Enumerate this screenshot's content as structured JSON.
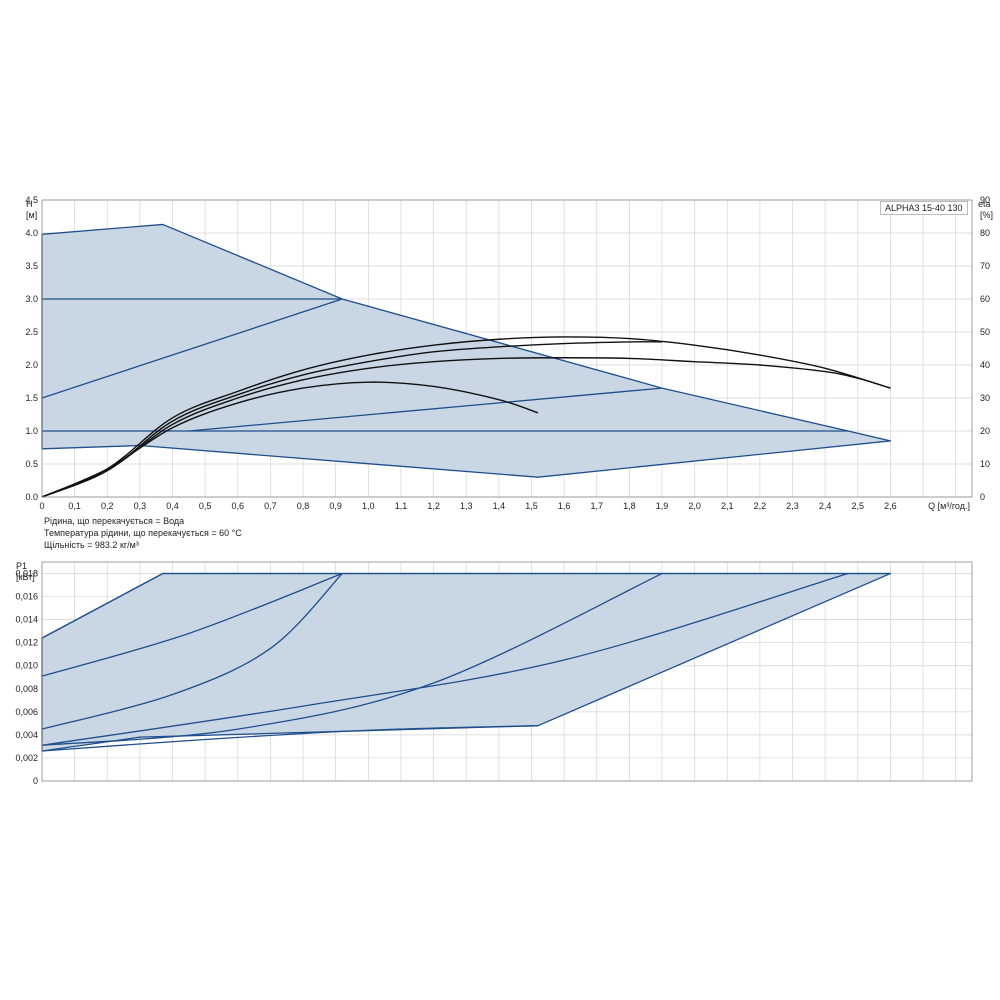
{
  "model_label": "ALPHA3 15-40 130",
  "notes": [
    "Рідина, що перекачується = Вода",
    "Температура рідини, що перекачується = 60 °C",
    "Щільність = 983.2 кг/м³"
  ],
  "colors": {
    "region_fill": "#c9d7e5",
    "boundary": "#1f4e8c",
    "duty_curve": "#111111",
    "grid": "#d4d4d4"
  },
  "chart_data": [
    {
      "type": "line",
      "name": "head",
      "y_label_top": "H",
      "y_unit": "[м]",
      "y2_label_top": "eta",
      "y2_unit": "[%]",
      "x_label": "Q [м³/год.]",
      "xlim": [
        0,
        2.85
      ],
      "ylim": [
        0,
        4.5
      ],
      "y2lim": [
        0,
        90
      ],
      "x_ticks": [
        "0",
        "0,1",
        "0,2",
        "0,3",
        "0,4",
        "0,5",
        "0,6",
        "0,7",
        "0,8",
        "0,9",
        "1,0",
        "1,1",
        "1,2",
        "1,3",
        "1,4",
        "1,5",
        "1,6",
        "1,7",
        "1,8",
        "1,9",
        "2,0",
        "2,1",
        "2,2",
        "2,3",
        "2,4",
        "2,5",
        "2,6"
      ],
      "y_ticks": [
        "0.0",
        "0.5",
        "1.0",
        "1.5",
        "2.0",
        "2.5",
        "3.0",
        "3.5",
        "4.0",
        "4.5"
      ],
      "y2_ticks": [
        "0",
        "10",
        "20",
        "30",
        "40",
        "50",
        "60",
        "70",
        "80",
        "90"
      ],
      "grid": true,
      "operating_region": [
        [
          0,
          3.98
        ],
        [
          0.37,
          4.13
        ],
        [
          0.92,
          3.0
        ],
        [
          1.9,
          1.65
        ],
        [
          2.47,
          1.0
        ],
        [
          2.6,
          0.85
        ],
        [
          1.52,
          0.3
        ],
        [
          0.3,
          0.78
        ],
        [
          0,
          0.73
        ]
      ],
      "control_lines": [
        {
          "points": [
            [
              0,
              3.0
            ],
            [
              0.92,
              3.0
            ]
          ]
        },
        {
          "points": [
            [
              0,
              1.5
            ],
            [
              0.92,
              3.0
            ]
          ]
        },
        {
          "points": [
            [
              0,
              1.0
            ],
            [
              2.47,
              1.0
            ]
          ]
        },
        {
          "points": [
            [
              0.45,
              1.0
            ],
            [
              1.9,
              1.65
            ]
          ]
        }
      ],
      "efficiency_curves": [
        {
          "points": [
            [
              0,
              0
            ],
            [
              0.2,
              8.5
            ],
            [
              0.4,
              21
            ],
            [
              0.6,
              28.5
            ],
            [
              0.8,
              33
            ],
            [
              1.0,
              34.8
            ],
            [
              1.2,
              33.5
            ],
            [
              1.4,
              29.5
            ],
            [
              1.52,
              25.5
            ]
          ]
        },
        {
          "points": [
            [
              0,
              0
            ],
            [
              0.2,
              8
            ],
            [
              0.4,
              22
            ],
            [
              0.6,
              30
            ],
            [
              0.8,
              35.5
            ],
            [
              1.0,
              39
            ],
            [
              1.2,
              41
            ],
            [
              1.4,
              42
            ],
            [
              1.6,
              42.2
            ],
            [
              1.8,
              42
            ],
            [
              2.0,
              41
            ],
            [
              2.2,
              40
            ],
            [
              2.4,
              38
            ],
            [
              2.5,
              36
            ],
            [
              2.6,
              33
            ]
          ]
        },
        {
          "points": [
            [
              0,
              0
            ],
            [
              0.2,
              8
            ],
            [
              0.4,
              23
            ],
            [
              0.6,
              31
            ],
            [
              0.8,
              37
            ],
            [
              1.0,
              41
            ],
            [
              1.2,
              44
            ],
            [
              1.4,
              45.5
            ],
            [
              1.6,
              46.5
            ],
            [
              1.8,
              47
            ],
            [
              1.9,
              47
            ]
          ]
        },
        {
          "points": [
            [
              0,
              0
            ],
            [
              0.2,
              8.5
            ],
            [
              0.4,
              24
            ],
            [
              0.6,
              32
            ],
            [
              0.8,
              38.5
            ],
            [
              1.0,
              43
            ],
            [
              1.2,
              46
            ],
            [
              1.4,
              47.8
            ],
            [
              1.6,
              48.5
            ],
            [
              1.8,
              48
            ],
            [
              2.0,
              46
            ],
            [
              2.2,
              43
            ],
            [
              2.4,
              39
            ],
            [
              2.6,
              33
            ]
          ]
        }
      ]
    },
    {
      "type": "line",
      "name": "power",
      "y_label_top": "P1",
      "y_unit": "[кВт]",
      "xlim": [
        0,
        2.85
      ],
      "ylim": [
        0,
        0.019
      ],
      "y_ticks": [
        "0",
        "0,002",
        "0,004",
        "0,006",
        "0,008",
        "0,010",
        "0,012",
        "0,014",
        "0,016",
        "0,018"
      ],
      "grid": true,
      "operating_region": [
        [
          0,
          0.0124
        ],
        [
          0.37,
          0.018
        ],
        [
          2.6,
          0.018
        ],
        [
          1.52,
          0.0048
        ],
        [
          0.3,
          0.0038
        ],
        [
          0,
          0.0026
        ]
      ],
      "control_lines": [
        {
          "points": [
            [
              0,
              0.0124
            ],
            [
              0.37,
              0.018
            ]
          ]
        },
        {
          "points": [
            [
              0.37,
              0.018
            ],
            [
              2.6,
              0.018
            ]
          ]
        },
        {
          "points": [
            [
              0,
              0.0091
            ],
            [
              0.45,
              0.0128
            ],
            [
              0.92,
              0.018
            ]
          ]
        },
        {
          "points": [
            [
              0,
              0.0045
            ],
            [
              0.4,
              0.0075
            ],
            [
              0.7,
              0.0115
            ],
            [
              0.92,
              0.018
            ]
          ]
        },
        {
          "points": [
            [
              0,
              0.0031
            ],
            [
              0.6,
              0.0045
            ],
            [
              1.2,
              0.0085
            ],
            [
              1.9,
              0.018
            ]
          ]
        },
        {
          "points": [
            [
              0,
              0.0031
            ],
            [
              0.8,
              0.0065
            ],
            [
              1.6,
              0.0105
            ],
            [
              2.47,
              0.018
            ]
          ]
        },
        {
          "points": [
            [
              0,
              0.0026
            ],
            [
              0.5,
              0.0036
            ],
            [
              1.0,
              0.0044
            ],
            [
              1.52,
              0.0048
            ]
          ]
        }
      ]
    }
  ]
}
